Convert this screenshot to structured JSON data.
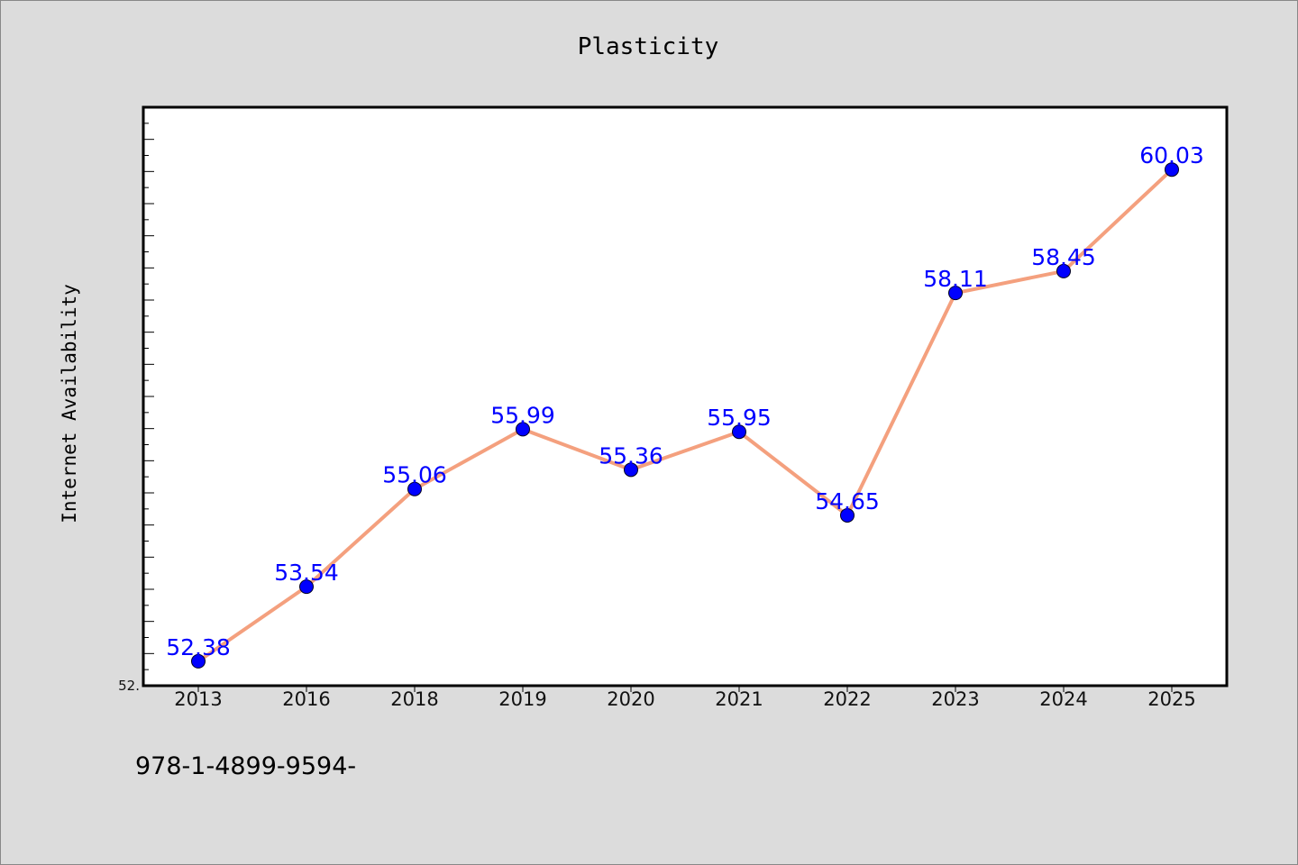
{
  "chart_data": {
    "type": "line",
    "title": "Plasticity",
    "xlabel": "",
    "ylabel": "Internet Availability",
    "categories": [
      "2013",
      "2016",
      "2018",
      "2019",
      "2020",
      "2021",
      "2022",
      "2023",
      "2024",
      "2025"
    ],
    "series": [
      {
        "values": [
          52.38,
          53.54,
          55.06,
          55.99,
          55.36,
          55.95,
          54.65,
          58.11,
          58.45,
          60.03
        ],
        "labels": [
          "52.38",
          "53.54",
          "55.06",
          "55.99",
          "55.36",
          "55.95",
          "54.65",
          "58.11",
          "58.45",
          "60.03"
        ]
      }
    ],
    "ylim": [
      52.0,
      61.0
    ],
    "y_tick_labels": [
      "52."
    ],
    "grid": false,
    "legend": "none",
    "colors": {
      "line": "#f4a07e",
      "marker": "#0000ff",
      "data_label": "#0000ff",
      "plot_background": "#ffffff",
      "page_background": "#dcdcdc"
    }
  },
  "footer": {
    "text": "978-1-4899-9594-"
  }
}
